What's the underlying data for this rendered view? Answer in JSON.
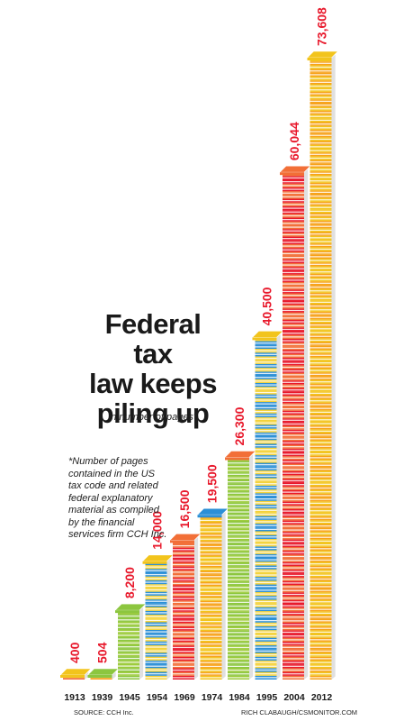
{
  "chart_data": {
    "type": "bar",
    "title": "Federal tax law keeps piling up",
    "title_lines": [
      "Federal tax",
      "law keeps",
      "piling up"
    ],
    "subtitle": "in number of pages*",
    "categories": [
      "1913",
      "1939",
      "1945",
      "1954",
      "1969",
      "1974",
      "1984",
      "1995",
      "2004",
      "2012"
    ],
    "values": [
      400,
      504,
      8200,
      14000,
      16500,
      19500,
      26300,
      40500,
      60044,
      73608
    ],
    "value_labels": [
      "400",
      "504",
      "8,200",
      "14,000",
      "16,500",
      "19,500",
      "26,300",
      "40,500",
      "60,044",
      "73,608"
    ],
    "xlabel": "",
    "ylabel": "",
    "ylim": [
      0,
      73608
    ],
    "grid": false,
    "value_label_color": "#e8192c",
    "top_book_colors": [
      "#f2c41c",
      "#8cc63f",
      "#8cc63f",
      "#f2c41c",
      "#f26f37",
      "#2b8fd6",
      "#f26f37",
      "#f2c41c",
      "#f26f37",
      "#f2c41c"
    ],
    "book_palette": [
      "#f26f37",
      "#f2c41c",
      "#8cc63f",
      "#2b8fd6",
      "#e8192c",
      "#f7a21b",
      "#9ccb3b",
      "#f4d23a"
    ]
  },
  "footnote": "*Number of pages contained in the US tax code and related federal explanatory material as compiled by the financial services firm CCH Inc.",
  "source": "SOURCE: CCH Inc.",
  "credit": "RICH CLABAUGH/CSMONITOR.COM"
}
